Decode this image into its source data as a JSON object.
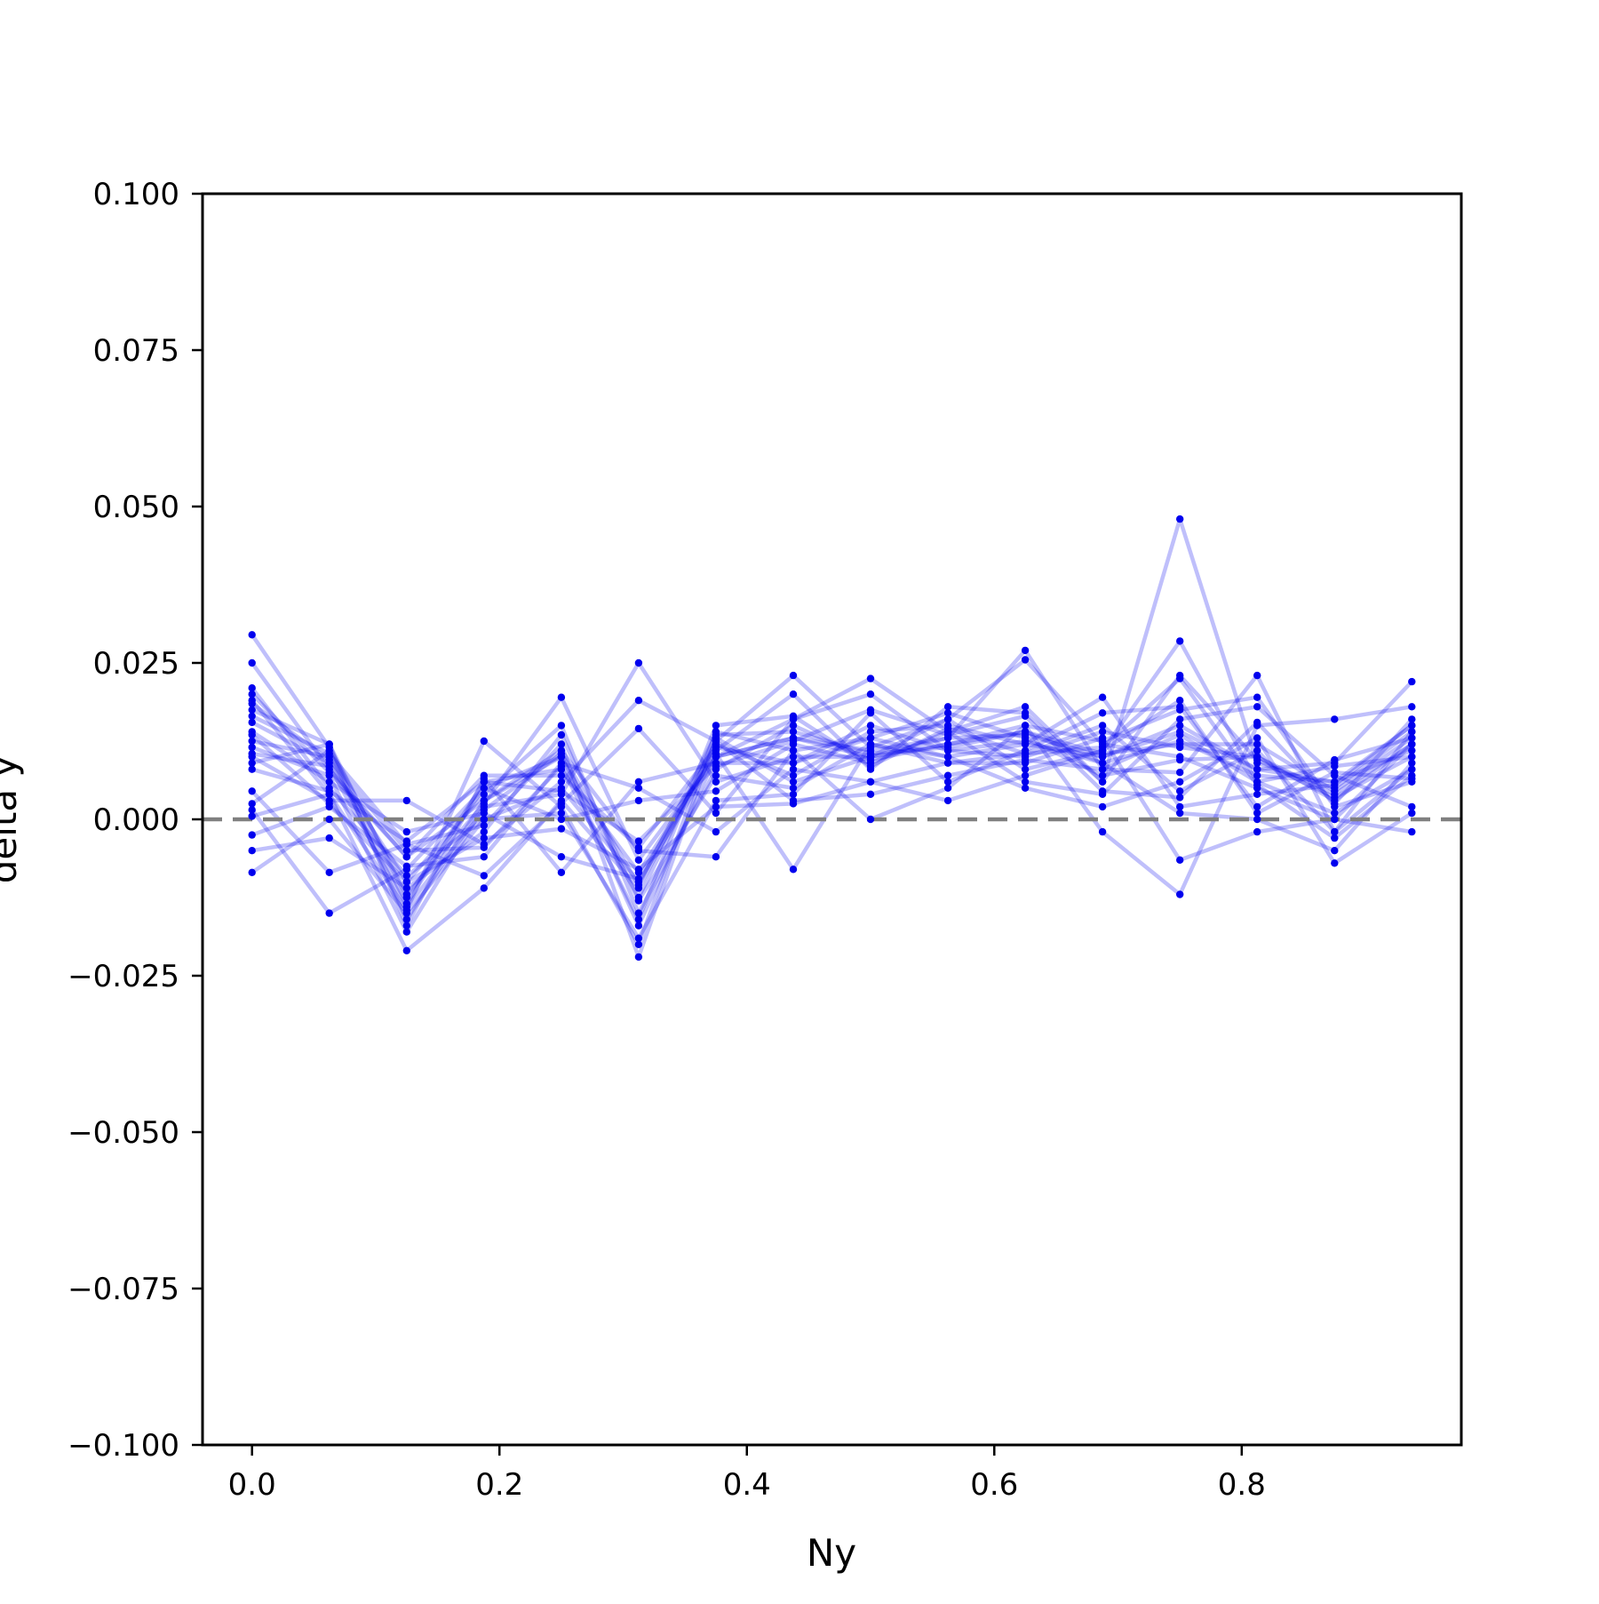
{
  "chart_data": {
    "type": "line",
    "title": "",
    "xlabel": "Ny",
    "ylabel": "delta y",
    "xlim": [
      -0.04,
      0.9775
    ],
    "ylim": [
      -0.1,
      0.1
    ],
    "xticks": [
      0.0,
      0.2,
      0.4,
      0.6,
      0.8
    ],
    "xtick_labels": [
      "0.0",
      "0.2",
      "0.4",
      "0.6",
      "0.8"
    ],
    "yticks": [
      0.1,
      0.075,
      0.05,
      0.025,
      0.0,
      -0.025,
      -0.05,
      -0.075,
      -0.1
    ],
    "ytick_labels": [
      "0.100",
      "0.075",
      "0.050",
      "0.025",
      "0.000",
      "−0.025",
      "−0.050",
      "−0.075",
      "−0.100"
    ],
    "grid": false,
    "reference_line": {
      "y": 0.0,
      "style": "dashed",
      "color": "#808080"
    },
    "colors": {
      "series": "#0000ee",
      "reference": "#808080"
    },
    "x": [
      0.0,
      0.0625,
      0.125,
      0.1875,
      0.25,
      0.3125,
      0.375,
      0.4375,
      0.5,
      0.5625,
      0.625,
      0.6875,
      0.75,
      0.8125,
      0.875,
      0.9375
    ],
    "series": [
      {
        "values": [
          0.0295,
          0.0115,
          -0.012,
          0.0025,
          0.0195,
          -0.0065,
          0.01,
          0.013,
          0.01,
          0.012,
          0.014,
          0.009,
          0.0125,
          0.007,
          0.006,
          0.015
        ]
      },
      {
        "values": [
          0.025,
          0.008,
          -0.006,
          0.003,
          0.01,
          -0.0125,
          0.0125,
          0.023,
          0.0115,
          0.016,
          0.0255,
          0.012,
          0.01,
          0.005,
          0.0,
          0.012
        ]
      },
      {
        "values": [
          0.021,
          0.005,
          -0.009,
          0.0,
          0.005,
          -0.01,
          0.01,
          0.016,
          0.0225,
          0.014,
          0.018,
          0.006,
          0.048,
          0.009,
          0.005,
          0.014
        ]
      },
      {
        "values": [
          0.019,
          0.004,
          -0.0145,
          0.0125,
          0.002,
          -0.02,
          0.014,
          0.011,
          0.013,
          0.01,
          0.012,
          0.01,
          0.015,
          0.008,
          0.009,
          0.022
        ]
      },
      {
        "values": [
          0.0175,
          0.012,
          -0.017,
          0.0065,
          -0.0085,
          0.006,
          0.009,
          0.009,
          0.015,
          0.011,
          0.01,
          0.014,
          0.0115,
          0.01,
          0.003,
          0.012
        ]
      },
      {
        "values": [
          0.0165,
          0.0105,
          -0.004,
          -0.001,
          0.012,
          -0.022,
          0.013,
          0.006,
          0.01,
          0.013,
          0.027,
          0.008,
          0.0135,
          0.006,
          0.001,
          0.008
        ]
      },
      {
        "values": [
          0.0155,
          0.009,
          -0.01,
          0.004,
          0.015,
          -0.015,
          0.008,
          0.015,
          0.0095,
          0.012,
          0.015,
          0.0125,
          0.0175,
          0.0195,
          0.002,
          0.006
        ]
      },
      {
        "values": [
          0.014,
          0.006,
          -0.002,
          0.001,
          -0.006,
          -0.0095,
          0.011,
          0.02,
          0.008,
          0.018,
          0.017,
          0.006,
          0.023,
          0.0095,
          0.0035,
          0.01
        ]
      },
      {
        "values": [
          0.0125,
          0.01,
          -0.0135,
          0.006,
          0.008,
          -0.0085,
          0.0105,
          -0.008,
          0.012,
          0.009,
          0.0105,
          0.015,
          0.0045,
          0.011,
          -0.002,
          0.014
        ]
      },
      {
        "values": [
          0.0115,
          0.007,
          -0.018,
          0.002,
          0.004,
          0.025,
          0.006,
          0.01,
          0.01,
          0.016,
          0.008,
          0.011,
          0.0285,
          0.006,
          0.0085,
          0.01
        ]
      },
      {
        "values": [
          0.01,
          0.003,
          0.003,
          -0.004,
          0.006,
          0.019,
          0.0125,
          0.003,
          0.004,
          0.007,
          0.0095,
          0.008,
          0.0075,
          0.023,
          -0.002,
          0.008
        ]
      },
      {
        "values": [
          0.009,
          0.012,
          -0.0125,
          0.005,
          0.01,
          -0.017,
          0.01,
          0.013,
          0.011,
          0.013,
          0.0135,
          0.01,
          0.014,
          0.008,
          0.006,
          0.011
        ]
      },
      {
        "values": [
          0.0045,
          -0.0085,
          -0.004,
          -0.009,
          0.0025,
          0.0145,
          0.001,
          0.016,
          0.02,
          0.011,
          0.0125,
          0.009,
          0.001,
          0.0,
          -0.005,
          0.009
        ]
      },
      {
        "values": [
          0.0025,
          0.011,
          -0.016,
          0.003,
          0.011,
          -0.005,
          -0.006,
          0.011,
          0.0,
          0.005,
          0.015,
          -0.002,
          -0.012,
          0.015,
          0.016,
          0.018
        ]
      },
      {
        "values": [
          0.0015,
          -0.015,
          -0.008,
          0.005,
          0.0,
          0.003,
          0.0045,
          0.012,
          0.009,
          0.014,
          0.006,
          0.004,
          0.016,
          0.018,
          0.007,
          0.002
        ]
      },
      {
        "values": [
          0.0005,
          0.004,
          -0.021,
          -0.011,
          0.003,
          -0.011,
          0.012,
          0.007,
          0.014,
          0.015,
          0.012,
          0.0195,
          0.002,
          0.004,
          0.0055,
          0.015
        ]
      },
      {
        "values": [
          -0.0025,
          0.002,
          -0.0075,
          -0.006,
          0.009,
          0.005,
          -0.002,
          0.008,
          0.006,
          0.009,
          0.009,
          0.013,
          -0.0065,
          -0.002,
          0.0,
          -0.002
        ]
      },
      {
        "values": [
          -0.005,
          -0.003,
          -0.011,
          -0.002,
          0.0135,
          -0.013,
          0.007,
          0.005,
          0.012,
          0.01,
          0.005,
          0.002,
          0.006,
          0.013,
          -0.007,
          0.001
        ]
      },
      {
        "values": [
          -0.0085,
          0.0,
          -0.015,
          0.0,
          0.001,
          -0.019,
          0.003,
          0.004,
          0.017,
          0.006,
          0.011,
          0.017,
          0.018,
          0.002,
          0.0095,
          0.013
        ]
      },
      {
        "values": [
          0.02,
          0.0075,
          -0.006,
          0.007,
          0.007,
          -0.0045,
          0.0115,
          0.009,
          0.013,
          0.017,
          0.013,
          0.007,
          0.0095,
          0.01,
          0.004,
          0.012
        ]
      },
      {
        "values": [
          0.0135,
          0.0025,
          -0.01,
          -0.003,
          -0.0015,
          -0.008,
          0.002,
          0.0025,
          0.006,
          0.003,
          0.007,
          0.011,
          0.019,
          0.001,
          0.0075,
          0.0065
        ]
      },
      {
        "values": [
          0.0105,
          0.0085,
          -0.014,
          0.0015,
          0.0105,
          -0.0105,
          0.0135,
          0.014,
          0.0105,
          0.0115,
          0.014,
          0.0105,
          0.012,
          0.012,
          0.0045,
          0.013
        ]
      },
      {
        "values": [
          0.008,
          0.0045,
          -0.0035,
          0.006,
          0.0045,
          -0.0035,
          0.0085,
          0.0125,
          0.0175,
          0.0135,
          0.0165,
          0.0045,
          0.0035,
          0.0155,
          0.0025,
          0.016
        ]
      },
      {
        "values": [
          0.0185,
          0.0095,
          -0.005,
          -0.0045,
          0.0085,
          -0.016,
          0.015,
          0.0165,
          0.0085,
          0.0145,
          0.0105,
          0.0115,
          0.0225,
          0.0055,
          -0.003,
          0.007
        ]
      }
    ]
  }
}
